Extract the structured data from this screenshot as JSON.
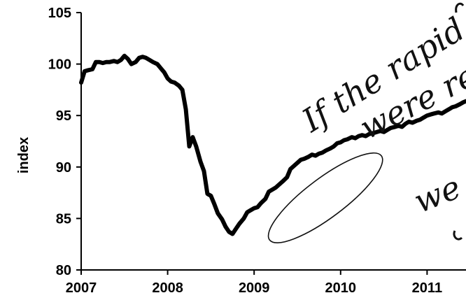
{
  "chart_data": {
    "type": "line",
    "title": "",
    "xlabel": "",
    "ylabel": "index",
    "xlim": [
      2007.0,
      2011.45
    ],
    "ylim": [
      80,
      105
    ],
    "y_ticks": [
      80,
      85,
      90,
      95,
      100,
      105
    ],
    "y_tick_labels": [
      "80",
      "85",
      "90",
      "95",
      "100",
      "105"
    ],
    "x_ticks": [
      2007,
      2008,
      2009,
      2010,
      2011
    ],
    "x_tick_labels": [
      "2007",
      "2008",
      "2009",
      "2010",
      "2011"
    ],
    "grid": false,
    "legend": "none",
    "series": [
      {
        "color": "#000000",
        "x": [
          2007.0,
          2007.04,
          2007.08,
          2007.13,
          2007.17,
          2007.21,
          2007.25,
          2007.29,
          2007.33,
          2007.38,
          2007.42,
          2007.46,
          2007.5,
          2007.54,
          2007.58,
          2007.63,
          2007.67,
          2007.71,
          2007.75,
          2007.79,
          2007.83,
          2007.88,
          2007.92,
          2007.96,
          2008.0,
          2008.04,
          2008.08,
          2008.13,
          2008.17,
          2008.21,
          2008.25,
          2008.29,
          2008.33,
          2008.38,
          2008.42,
          2008.46,
          2008.5,
          2008.54,
          2008.58,
          2008.63,
          2008.67,
          2008.71,
          2008.75,
          2008.79,
          2008.83,
          2008.88,
          2008.92,
          2008.96,
          2009.0,
          2009.04,
          2009.08,
          2009.13,
          2009.17,
          2009.21,
          2009.25,
          2009.29,
          2009.33,
          2009.38,
          2009.42,
          2009.46,
          2009.5,
          2009.54,
          2009.58,
          2009.63,
          2009.67,
          2009.71,
          2009.75,
          2009.79,
          2009.83,
          2009.88,
          2009.92,
          2009.96,
          2010.0,
          2010.04,
          2010.08,
          2010.13,
          2010.17,
          2010.21,
          2010.25,
          2010.29,
          2010.33,
          2010.38,
          2010.42,
          2010.46,
          2010.5,
          2010.54,
          2010.58,
          2010.63,
          2010.67,
          2010.71,
          2010.75,
          2010.79,
          2010.83,
          2010.88,
          2010.92,
          2010.96,
          2011.0,
          2011.04,
          2011.08,
          2011.13,
          2011.17,
          2011.21,
          2011.25,
          2011.29,
          2011.33,
          2011.38,
          2011.42,
          2011.45
        ],
        "values": [
          98.2,
          99.3,
          99.4,
          99.5,
          100.2,
          100.2,
          100.1,
          100.2,
          100.2,
          100.3,
          100.2,
          100.4,
          100.8,
          100.5,
          100.0,
          100.2,
          100.6,
          100.7,
          100.6,
          100.4,
          100.2,
          100.0,
          99.6,
          99.2,
          98.6,
          98.3,
          98.2,
          97.9,
          97.5,
          95.6,
          92.0,
          92.9,
          92.0,
          90.5,
          89.6,
          87.4,
          87.2,
          86.4,
          85.5,
          84.9,
          84.2,
          83.7,
          83.5,
          84.0,
          84.5,
          85.0,
          85.6,
          85.8,
          86.0,
          86.1,
          86.5,
          86.9,
          87.6,
          87.8,
          88.0,
          88.3,
          88.6,
          89.0,
          89.8,
          90.1,
          90.4,
          90.7,
          90.8,
          91.0,
          91.2,
          91.1,
          91.3,
          91.4,
          91.6,
          91.8,
          92.0,
          92.3,
          92.4,
          92.6,
          92.7,
          92.9,
          92.8,
          93.0,
          93.1,
          93.0,
          93.2,
          93.3,
          93.4,
          93.5,
          93.4,
          93.6,
          93.8,
          93.9,
          94.0,
          93.9,
          94.2,
          94.4,
          94.3,
          94.5,
          94.6,
          94.8,
          95.0,
          95.1,
          95.2,
          95.3,
          95.2,
          95.4,
          95.6,
          95.8,
          95.9,
          96.1,
          96.3,
          96.4
        ]
      }
    ],
    "annotations": [
      {
        "id": "note-1",
        "text": "If the rapid",
        "kind": "handwritten"
      },
      {
        "id": "note-2",
        "text": "were re",
        "kind": "handwritten"
      },
      {
        "id": "note-3",
        "text": "we",
        "kind": "handwritten"
      }
    ],
    "highlight": {
      "shape": "ellipse",
      "x_range": [
        2009.2,
        2010.45
      ],
      "y_range": [
        82.5,
        91.5
      ]
    }
  }
}
